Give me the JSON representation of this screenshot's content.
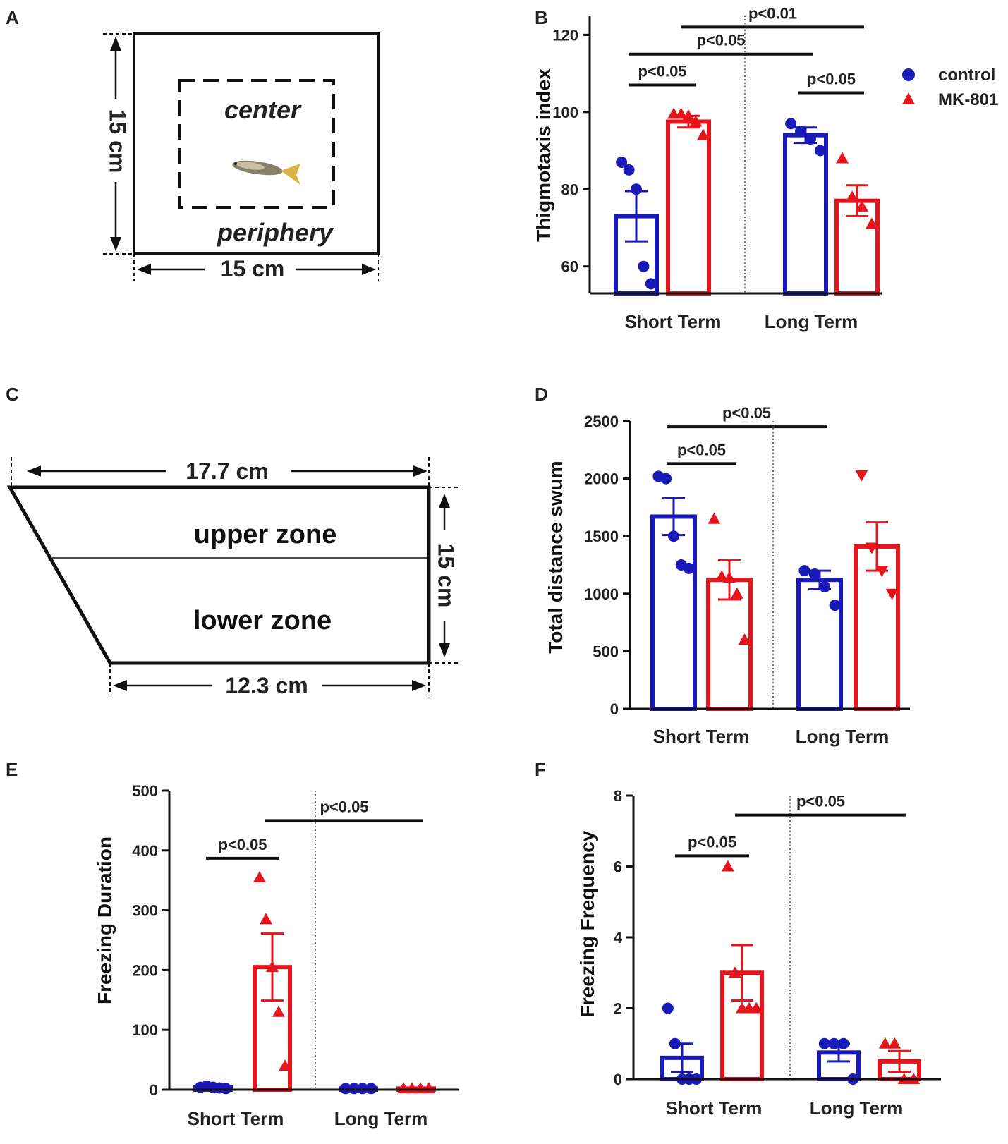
{
  "colors": {
    "control": "#1a1ab8",
    "mk801": "#e8141c",
    "axis": "#111111"
  },
  "panels": {
    "a": "A",
    "b": "B",
    "c": "C",
    "d": "D",
    "e": "E",
    "f": "F"
  },
  "diagram_a": {
    "center": "center",
    "periphery": "periphery",
    "height": "15 cm",
    "width": "15 cm"
  },
  "diagram_c": {
    "top_width": "17.7 cm",
    "bottom_width": "12.3 cm",
    "height": "15 cm",
    "upper": "upper zone",
    "lower": "lower zone"
  },
  "legend": {
    "control": "control",
    "mk801": "MK-801"
  },
  "chart_data": [
    {
      "panel": "B",
      "type": "bar",
      "ylabel": "Thigmotaxis index",
      "categories": [
        "Short Term",
        "Long Term"
      ],
      "ylim": [
        53,
        125
      ],
      "yticks": [
        60,
        80,
        100,
        120
      ],
      "series": [
        {
          "name": "control",
          "values": [
            73,
            94
          ],
          "sem": [
            6.5,
            2
          ],
          "points": [
            [
              87,
              85,
              80,
              60,
              55.5
            ],
            [
              97,
              95,
              93,
              90
            ]
          ]
        },
        {
          "name": "MK-801",
          "values": [
            97.5,
            77
          ],
          "sem": [
            1.5,
            4
          ],
          "points": [
            [
              99.5,
              99.5,
              99,
              97.5,
              94
            ],
            [
              88,
              78,
              75.5,
              71
            ]
          ]
        }
      ],
      "significance": [
        {
          "label": "p<0.05",
          "from": "Short Term control",
          "to": "Short Term MK-801",
          "y": 107
        },
        {
          "label": "p<0.05",
          "from": "Long Term control",
          "to": "Long Term MK-801",
          "y": 105
        },
        {
          "label": "p<0.05",
          "from": "Short Term control",
          "to": "Long Term control",
          "y": 115
        },
        {
          "label": "p<0.01",
          "from": "Short Term MK-801",
          "to": "Long Term MK-801",
          "y": 122
        }
      ]
    },
    {
      "panel": "D",
      "type": "bar",
      "ylabel": "Total distance swum",
      "categories": [
        "Short Term",
        "Long Term"
      ],
      "ylim": [
        0,
        2500
      ],
      "yticks": [
        0,
        500,
        1000,
        1500,
        2000,
        2500
      ],
      "series": [
        {
          "name": "control",
          "values": [
            1670,
            1120
          ],
          "sem": [
            160,
            80
          ],
          "points": [
            [
              2020,
              2000,
              1500,
              1250,
              1220
            ],
            [
              1200,
              1170,
              1060,
              900
            ]
          ]
        },
        {
          "name": "MK-801",
          "values": [
            1120,
            1410
          ],
          "sem": [
            170,
            210
          ],
          "points": [
            [
              1650,
              1150,
              1140,
              1000,
              600
            ],
            [
              2030,
              1400,
              1200,
              1000
            ]
          ]
        }
      ],
      "significance": [
        {
          "label": "p<0.05",
          "from": "Short Term control",
          "to": "Short Term MK-801",
          "y": 2130
        },
        {
          "label": "p<0.05",
          "from": "Short Term control",
          "to": "Long Term control",
          "y": 2450
        }
      ]
    },
    {
      "panel": "E",
      "type": "bar",
      "ylabel": "Freezing Duration",
      "categories": [
        "Short Term",
        "Long Term"
      ],
      "ylim": [
        0,
        500
      ],
      "yticks": [
        0,
        100,
        200,
        300,
        400,
        500
      ],
      "series": [
        {
          "name": "control",
          "values": [
            4,
            2
          ],
          "sem": [
            1,
            0.5
          ],
          "points": [
            [
              4,
              6,
              4,
              3,
              2
            ],
            [
              2,
              2,
              2,
              2
            ]
          ]
        },
        {
          "name": "MK-801",
          "values": [
            205,
            2
          ],
          "sem": [
            56,
            0.5
          ],
          "points": [
            [
              355,
              285,
              205,
              130,
              40
            ],
            [
              2,
              2,
              2,
              2
            ]
          ]
        }
      ],
      "significance": [
        {
          "label": "p<0.05",
          "from": "Short Term control",
          "to": "Short Term MK-801",
          "y": 387
        },
        {
          "label": "p<0.05",
          "from": "Short Term MK-801",
          "to": "Long Term MK-801",
          "y": 450
        }
      ]
    },
    {
      "panel": "F",
      "type": "bar",
      "ylabel": "Freezing Frequency",
      "categories": [
        "Short Term",
        "Long Term"
      ],
      "ylim": [
        0,
        8
      ],
      "yticks": [
        0,
        2,
        4,
        6,
        8
      ],
      "series": [
        {
          "name": "control",
          "values": [
            0.6,
            0.75
          ],
          "sem": [
            0.4,
            0.25
          ],
          "points": [
            [
              2,
              1,
              0,
              0,
              0
            ],
            [
              1,
              1,
              1,
              0
            ]
          ]
        },
        {
          "name": "MK-801",
          "values": [
            3,
            0.5
          ],
          "sem": [
            0.78,
            0.29
          ],
          "points": [
            [
              6,
              3,
              2,
              2,
              2
            ],
            [
              1,
              1,
              0,
              0
            ]
          ]
        }
      ],
      "significance": [
        {
          "label": "p<0.05",
          "from": "Short Term control",
          "to": "Short Term MK-801",
          "y": 6.3
        },
        {
          "label": "p<0.05",
          "from": "Short Term MK-801",
          "to": "Long Term MK-801",
          "y": 7.45
        }
      ]
    }
  ]
}
